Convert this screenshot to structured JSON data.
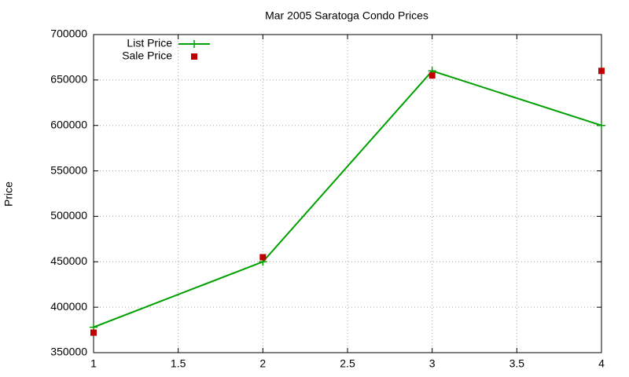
{
  "chart_data": {
    "type": "line",
    "title": "Mar 2005 Saratoga Condo Prices",
    "y_label": "Price",
    "x": [
      1,
      2,
      3,
      4
    ],
    "series": [
      {
        "name": "List Price",
        "color": "#00a000",
        "style": "linespoints",
        "values": [
          378000,
          450000,
          660000,
          600000
        ]
      },
      {
        "name": "Sale Price",
        "color": "#c00000",
        "style": "points",
        "values": [
          372000,
          455000,
          655000,
          660000
        ]
      }
    ],
    "xlim": [
      1,
      4
    ],
    "xticks": [
      1,
      1.5,
      2,
      2.5,
      3,
      3.5,
      4
    ],
    "ylim": [
      350000,
      700000
    ],
    "yticks": [
      350000,
      400000,
      450000,
      500000,
      550000,
      600000,
      650000,
      700000
    ],
    "grid": true,
    "legend": "top-left"
  }
}
